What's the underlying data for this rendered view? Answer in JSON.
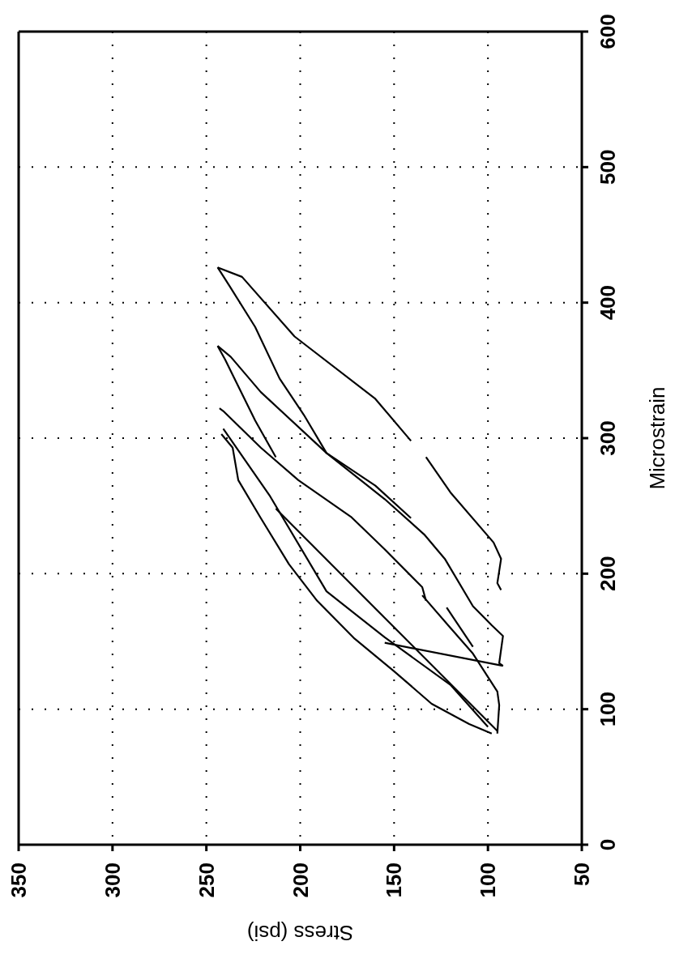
{
  "chart_data": {
    "type": "line",
    "xlabel": "Stress (psi)",
    "ylabel": "Microstrain",
    "xlim": [
      350,
      50
    ],
    "xticks": [
      350,
      300,
      250,
      200,
      150,
      100,
      50
    ],
    "ylim": [
      0,
      600
    ],
    "yticks": [
      0,
      100,
      200,
      300,
      400,
      500,
      600
    ],
    "grid": true,
    "marker": "none",
    "line_style": "solid",
    "series": [
      {
        "color": "#000000",
        "values": [
          426,
          419,
          375,
          329,
          298
        ],
        "x": [
          244,
          231,
          203,
          160,
          141
        ]
      },
      {
        "color": "#000000",
        "values": [
          286,
          260,
          223,
          211,
          193,
          188
        ],
        "x": [
          133,
          120,
          97,
          93,
          95,
          93
        ]
      },
      {
        "color": "#000000",
        "values": [
          426,
          413,
          382,
          344,
          317,
          289,
          265,
          241
        ],
        "x": [
          244,
          238,
          224,
          211,
          198,
          186,
          160,
          141
        ]
      },
      {
        "color": "#000000",
        "values": [
          368,
          360,
          334,
          289,
          255,
          229,
          211,
          176,
          162,
          154,
          134,
          132
        ],
        "x": [
          244,
          237,
          221,
          186,
          155,
          134,
          123,
          108,
          98,
          92,
          94,
          92
        ]
      },
      {
        "color": "#000000",
        "values": [
          368,
          358,
          313,
          286
        ],
        "x": [
          244,
          240,
          224,
          213
        ]
      },
      {
        "color": "#000000",
        "values": [
          322,
          320,
          293,
          269,
          242,
          218,
          190,
          180
        ],
        "x": [
          243,
          241,
          221,
          201,
          173,
          155,
          135,
          133
        ]
      },
      {
        "color": "#000000",
        "values": [
          303,
          293,
          269,
          241,
          207,
          180,
          152,
          128,
          104,
          89,
          82
        ],
        "x": [
          242,
          236,
          233,
          221,
          206,
          191,
          171,
          150,
          130,
          110,
          98
        ]
      },
      {
        "color": "#000000",
        "values": [
          307,
          257,
          187,
          153,
          118,
          87
        ],
        "x": [
          241,
          216,
          186,
          155,
          120,
          100
        ]
      },
      {
        "color": "#000000",
        "values": [
          82,
          103,
          113,
          141,
          160,
          184
        ],
        "x": [
          95,
          94,
          95,
          108,
          120,
          135
        ]
      },
      {
        "color": "#000000",
        "values": [
          84,
          248
        ],
        "x": [
          95,
          213
        ]
      },
      {
        "color": "#000000",
        "values": [
          132,
          149
        ],
        "x": [
          92,
          155
        ]
      },
      {
        "color": "#000000",
        "values": [
          175,
          146
        ],
        "x": [
          122,
          108
        ]
      }
    ]
  }
}
